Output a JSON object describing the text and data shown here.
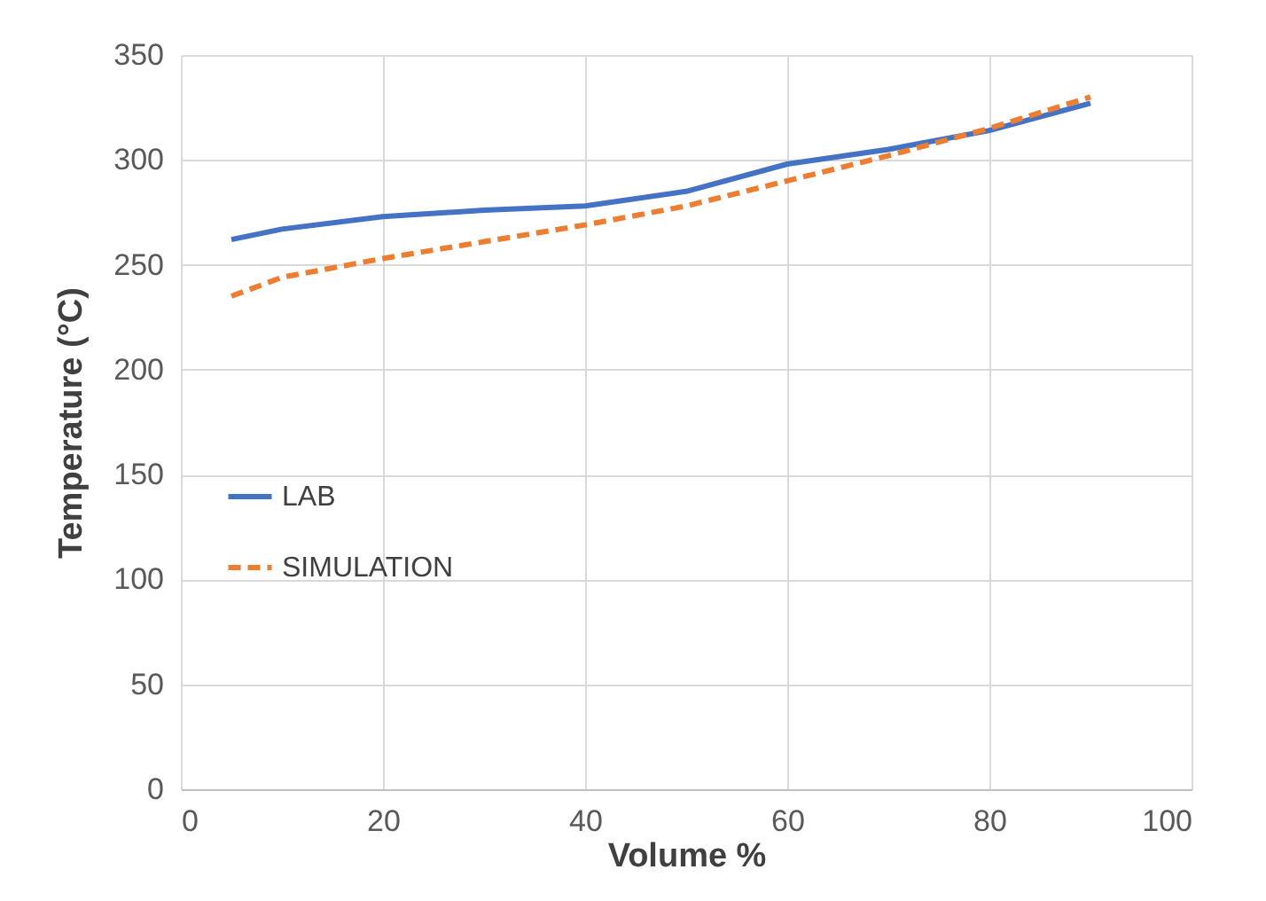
{
  "chart_data": {
    "type": "line",
    "xlabel": "Volume  %",
    "ylabel": "Temperature  (°C)",
    "x": [
      5,
      10,
      20,
      30,
      40,
      50,
      60,
      70,
      80,
      90
    ],
    "series": [
      {
        "name": "LAB",
        "color": "#4472c4",
        "line_style": "solid",
        "values": [
          262,
          267,
          273,
          276,
          278,
          285,
          298,
          305,
          314,
          327
        ]
      },
      {
        "name": "SIMULATION",
        "color": "#ed7d31",
        "line_style": "dashed",
        "values": [
          235,
          244,
          253,
          261,
          269,
          278,
          290,
          302,
          315,
          330
        ]
      }
    ],
    "xlim": [
      0,
      100
    ],
    "xticks": [
      0,
      20,
      40,
      60,
      80,
      100
    ],
    "ylim": [
      0,
      350
    ],
    "yticks": [
      0,
      50,
      100,
      150,
      200,
      250,
      300,
      350
    ],
    "grid": true,
    "legend": "left",
    "marker": "none"
  }
}
